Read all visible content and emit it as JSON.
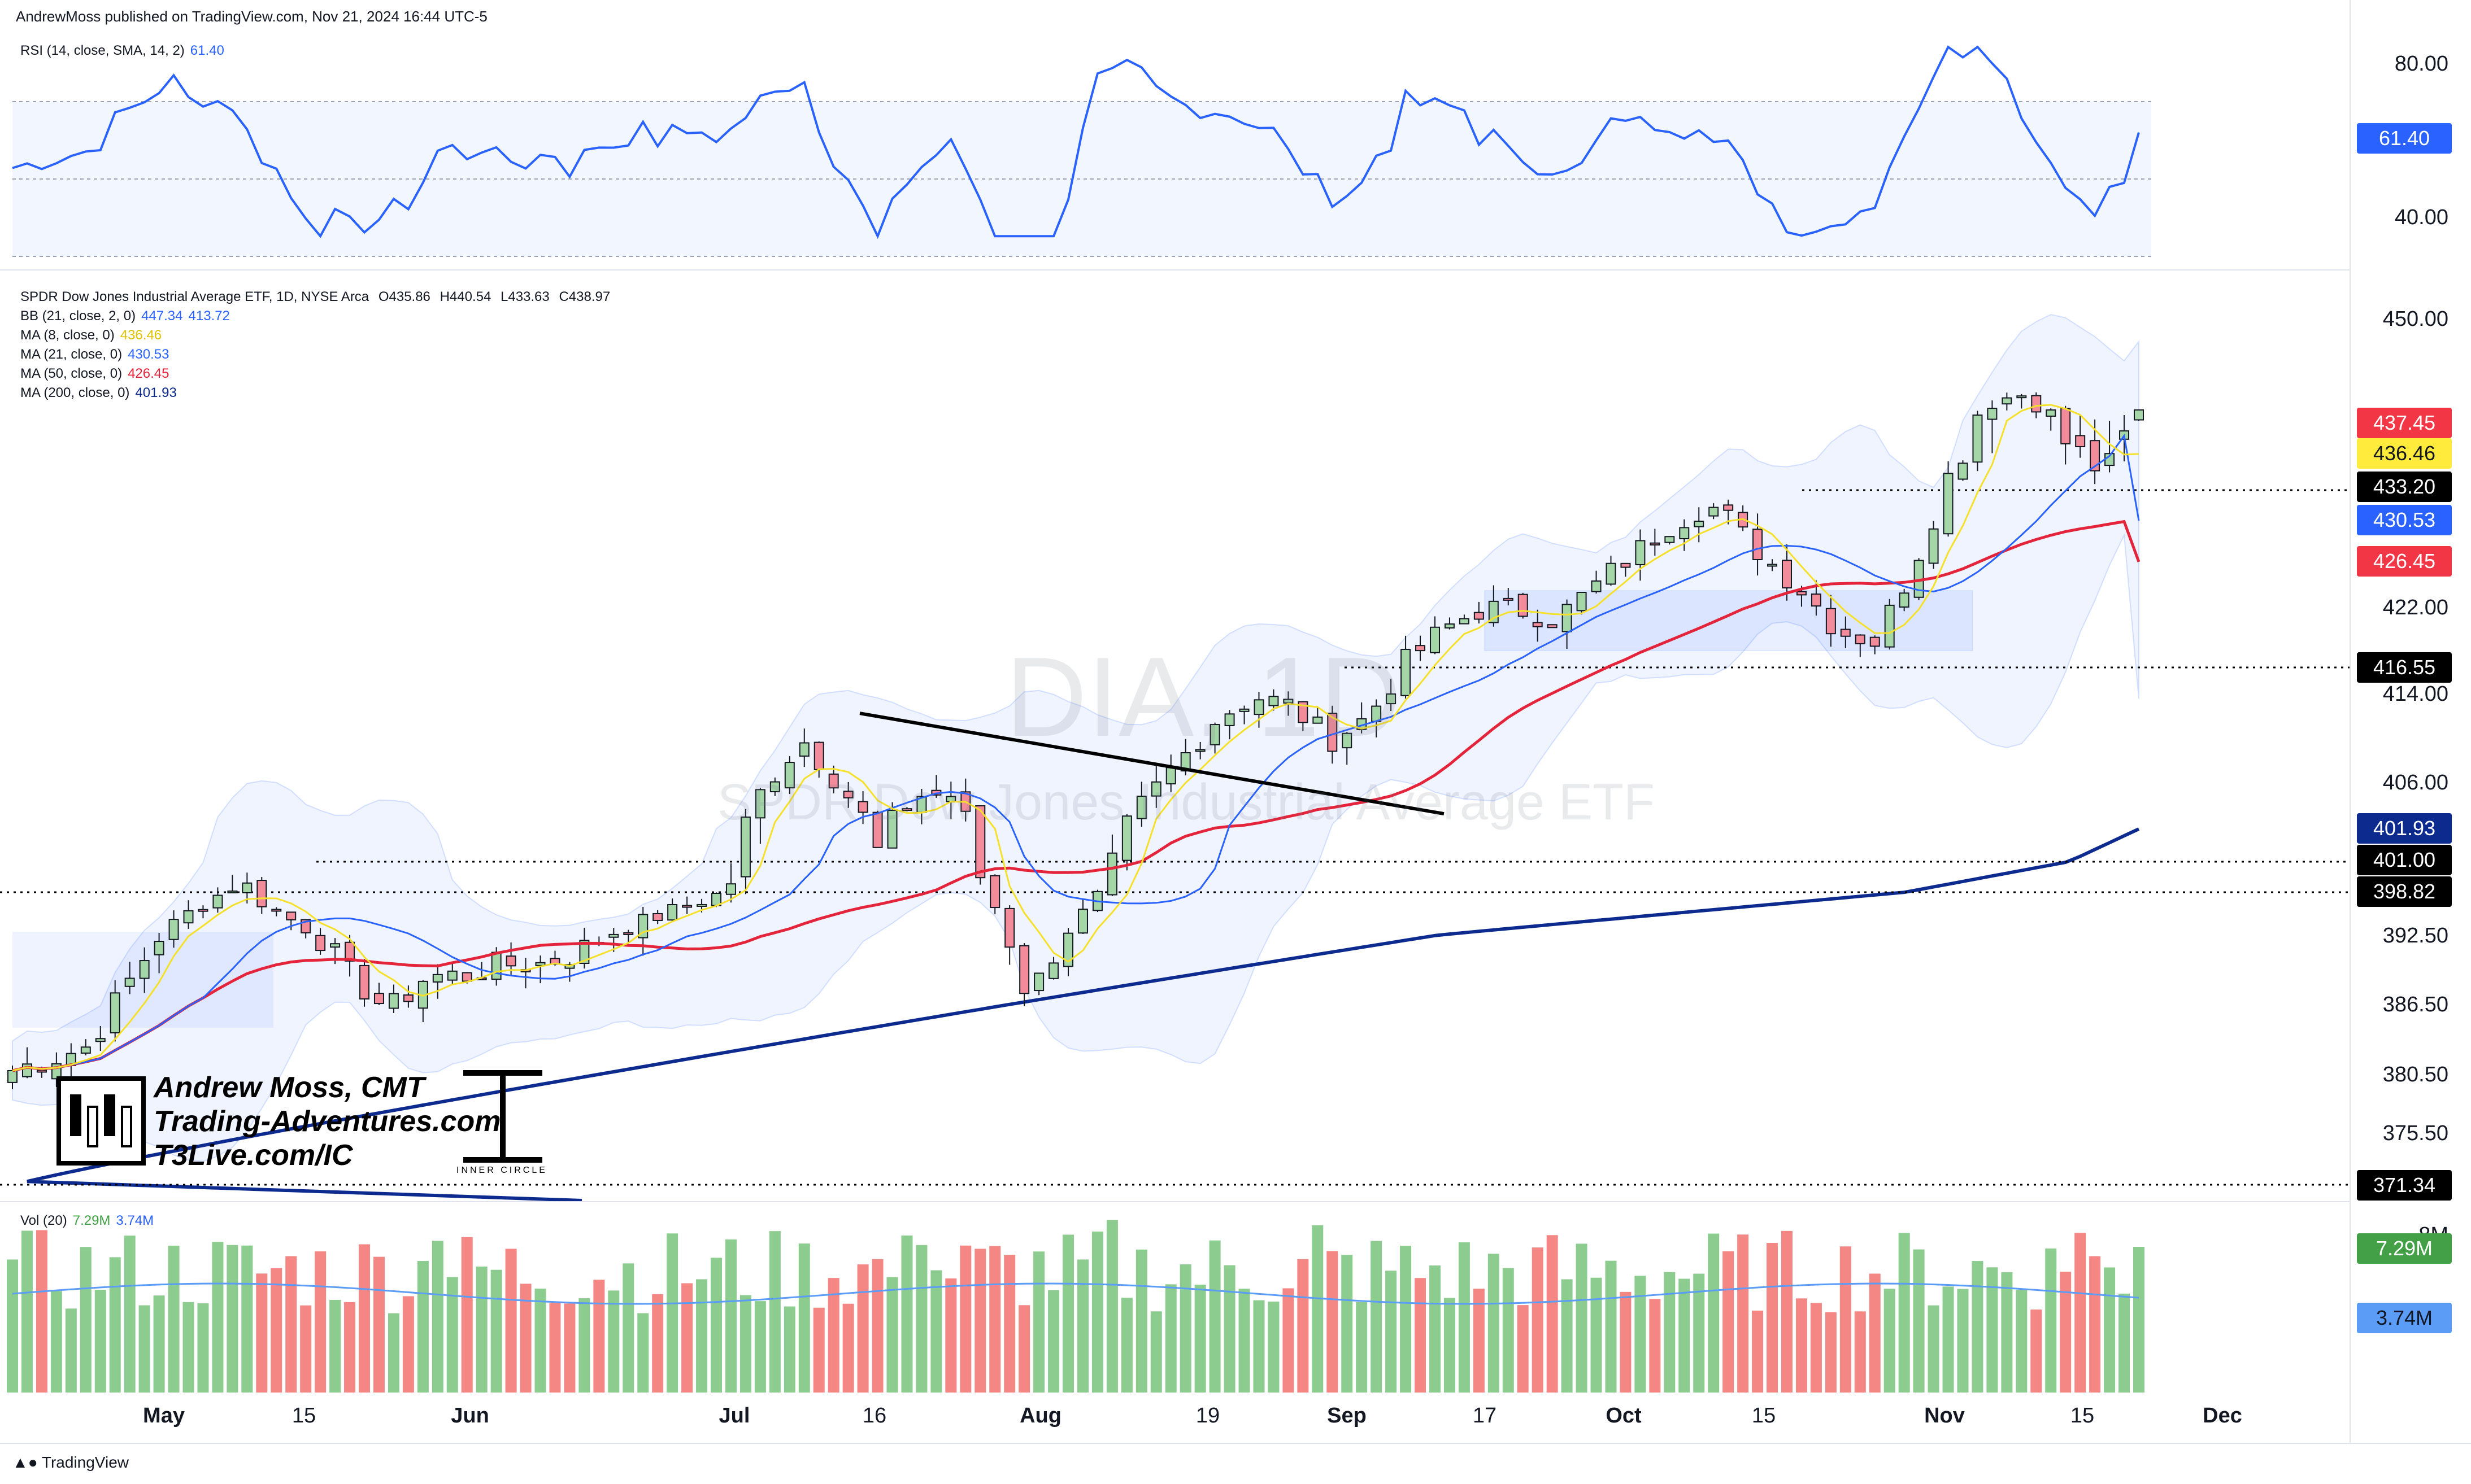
{
  "header": {
    "publisher": "AndrewMoss published on TradingView.com, Nov 21, 2024 16:44 UTC-5",
    "tradingview": "TradingView"
  },
  "watermark": {
    "symbol": "DIA, 1D",
    "name": "SPDR Dow Jones Industrial Average ETF"
  },
  "signature": {
    "line1": "Andrew Moss, CMT",
    "line2": "Trading-Adventures.com",
    "line3": "T3Live.com/IC",
    "ic_logo": "INNER CIRCLE"
  },
  "colors": {
    "up": "#a5d6a7",
    "down": "#f28b9a",
    "ma8": "#f5e12b",
    "ma21": "#2962ff",
    "ma50": "#e3243b",
    "ma200": "#0d2b8f",
    "bb": "#2962ff",
    "rsi": "#2962ff"
  },
  "rsi_panel": {
    "label": "RSI (14, close, SMA, 14, 2)",
    "value": "61.40",
    "ticks": [
      "80.00",
      "40.00"
    ],
    "badge": "61.40"
  },
  "price_panel": {
    "title": {
      "name": "SPDR Dow Jones Industrial Average ETF, 1D, NYSE Arca",
      "o": "O435.86",
      "h": "H440.54",
      "l": "L433.63",
      "c": "C438.97"
    },
    "legends": [
      {
        "label": "BB (21, close, 2, 0)",
        "values": [
          "447.34",
          "413.72"
        ],
        "color": "#2962ff"
      },
      {
        "label": "MA (8, close, 0)",
        "values": [
          "436.46"
        ],
        "color": "#e0c200"
      },
      {
        "label": "MA (21, close, 0)",
        "values": [
          "430.53"
        ],
        "color": "#2962ff"
      },
      {
        "label": "MA (50, close, 0)",
        "values": [
          "426.45"
        ],
        "color": "#e3243b"
      },
      {
        "label": "MA (200, close, 0)",
        "values": [
          "401.93"
        ],
        "color": "#0d2b8f"
      }
    ],
    "ticks": [
      "450.00",
      "422.00",
      "414.00",
      "406.00",
      "392.50",
      "386.50",
      "380.50",
      "375.50"
    ],
    "badges": [
      {
        "text": "437.45",
        "bg": "#f23645",
        "fg": "#ffffff"
      },
      {
        "text": "436.46",
        "bg": "#ffeb3b",
        "fg": "#131722"
      },
      {
        "text": "433.20",
        "bg": "#000000",
        "fg": "#ffffff"
      },
      {
        "text": "430.53",
        "bg": "#2962ff",
        "fg": "#ffffff"
      },
      {
        "text": "426.45",
        "bg": "#f23645",
        "fg": "#ffffff"
      },
      {
        "text": "416.55",
        "bg": "#000000",
        "fg": "#ffffff"
      },
      {
        "text": "401.93",
        "bg": "#0d2b8f",
        "fg": "#ffffff"
      },
      {
        "text": "401.00",
        "bg": "#000000",
        "fg": "#ffffff"
      },
      {
        "text": "398.82",
        "bg": "#000000",
        "fg": "#ffffff"
      },
      {
        "text": "371.34",
        "bg": "#000000",
        "fg": "#ffffff"
      }
    ]
  },
  "volume_panel": {
    "label": "Vol (20)",
    "values": [
      "7.29M",
      "3.74M"
    ],
    "badges": [
      {
        "text": "7.29M",
        "bg": "#43a047",
        "fg": "#ffffff"
      },
      {
        "text": "3.74M",
        "bg": "#5b9cf6",
        "fg": "#131722"
      }
    ],
    "cutoff_tick": "8M"
  },
  "x_axis": {
    "labels": [
      "May",
      "15",
      "Jun",
      "Jul",
      "16",
      "Aug",
      "19",
      "Sep",
      "17",
      "Oct",
      "15",
      "Nov",
      "15",
      "Dec"
    ]
  },
  "chart_data": [
    {
      "type": "candlestick",
      "title": "SPDR Dow Jones Industrial Average ETF, 1D, NYSE Arca",
      "ylim": [
        371,
        453
      ],
      "horizontal_levels": [
        433.2,
        416.55,
        401.0,
        398.82,
        371.34
      ],
      "trendline": [
        [
          1522,
          412.4
        ],
        [
          2556,
          403.3
        ]
      ],
      "series": [
        {
          "name": "BB (21, close, 2, 0)",
          "values": [
            "447.34",
            "413.72"
          ]
        },
        {
          "name": "MA (8, close, 0)",
          "last": 436.46
        },
        {
          "name": "MA (21, close, 0)",
          "last": 430.53
        },
        {
          "name": "MA (50, close, 0)",
          "last": 426.45
        },
        {
          "name": "MA (200, close, 0)",
          "last": 401.93
        }
      ]
    },
    {
      "type": "line",
      "title": "RSI (14, close, SMA, 14, 2)",
      "ylim": [
        30,
        85
      ],
      "last": 61.4
    },
    {
      "type": "bar",
      "title": "Vol (20)",
      "last": "7.29M",
      "average": "3.74M"
    }
  ]
}
